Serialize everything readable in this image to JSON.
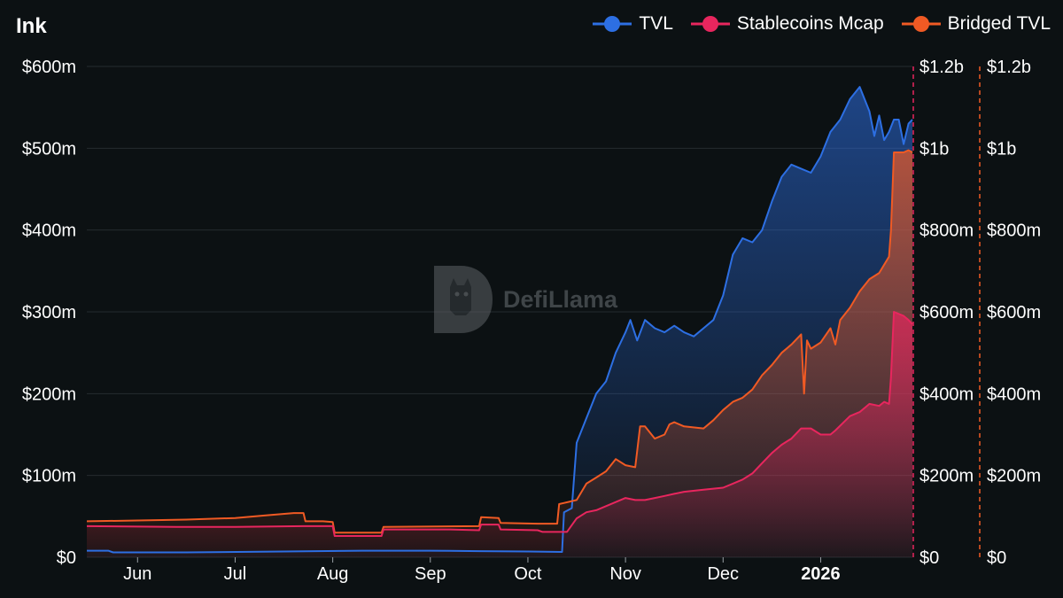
{
  "chart_data": {
    "type": "area",
    "title": "Ink",
    "legend": [
      "TVL",
      "Stablecoins Mcap",
      "Bridged TVL"
    ],
    "legend_position": "top-right",
    "x_tick_labels": [
      "Jun",
      "Jul",
      "Aug",
      "Sep",
      "Oct",
      "Nov",
      "Dec",
      "2026"
    ],
    "x_tick_months": [
      1,
      2,
      3,
      4,
      5,
      6,
      7,
      8
    ],
    "x_range_months": [
      0.48,
      8.94
    ],
    "left_axis": {
      "ticks": [
        "$0",
        "$100m",
        "$200m",
        "$300m",
        "$400m",
        "$500m",
        "$600m"
      ],
      "range": [
        0,
        600
      ]
    },
    "right_axis_1": {
      "ticks": [
        "$0",
        "$200m",
        "$400m",
        "$600m",
        "$800m",
        "$1b",
        "$1.2b"
      ],
      "range": [
        0,
        1200
      ]
    },
    "right_axis_2": {
      "ticks": [
        "$0",
        "$200m",
        "$400m",
        "$600m",
        "$800m",
        "$1b",
        "$1.2b"
      ],
      "range": [
        0,
        1200
      ]
    },
    "x_unit": "months since 2025-05-01 (1 = Jun 1)",
    "series": [
      {
        "name": "TVL",
        "axis": "left",
        "color": "#2d6fe3",
        "points": [
          [
            0.48,
            8
          ],
          [
            0.7,
            8
          ],
          [
            0.75,
            6
          ],
          [
            1.5,
            6
          ],
          [
            2.5,
            7
          ],
          [
            3.3,
            8
          ],
          [
            4.0,
            8
          ],
          [
            4.5,
            7.5
          ],
          [
            5.0,
            7
          ],
          [
            5.35,
            6.5
          ],
          [
            5.37,
            55
          ],
          [
            5.45,
            60
          ],
          [
            5.5,
            140
          ],
          [
            5.6,
            170
          ],
          [
            5.7,
            200
          ],
          [
            5.8,
            215
          ],
          [
            5.9,
            250
          ],
          [
            6.0,
            275
          ],
          [
            6.05,
            290
          ],
          [
            6.12,
            265
          ],
          [
            6.2,
            290
          ],
          [
            6.3,
            280
          ],
          [
            6.4,
            275
          ],
          [
            6.5,
            283
          ],
          [
            6.6,
            275
          ],
          [
            6.7,
            270
          ],
          [
            6.8,
            280
          ],
          [
            6.9,
            290
          ],
          [
            7.0,
            320
          ],
          [
            7.1,
            370
          ],
          [
            7.2,
            390
          ],
          [
            7.3,
            385
          ],
          [
            7.4,
            400
          ],
          [
            7.5,
            435
          ],
          [
            7.6,
            465
          ],
          [
            7.7,
            480
          ],
          [
            7.8,
            475
          ],
          [
            7.9,
            470
          ],
          [
            8.0,
            490
          ],
          [
            8.1,
            520
          ],
          [
            8.2,
            535
          ],
          [
            8.3,
            560
          ],
          [
            8.4,
            575
          ],
          [
            8.5,
            545
          ],
          [
            8.55,
            515
          ],
          [
            8.6,
            540
          ],
          [
            8.65,
            510
          ],
          [
            8.7,
            520
          ],
          [
            8.75,
            535
          ],
          [
            8.8,
            535
          ],
          [
            8.85,
            505
          ],
          [
            8.9,
            530
          ],
          [
            8.94,
            535
          ]
        ]
      },
      {
        "name": "Stablecoins Mcap",
        "axis": "right",
        "color": "#e8265e",
        "points": [
          [
            0.48,
            76
          ],
          [
            1.4,
            74
          ],
          [
            2.0,
            74
          ],
          [
            2.7,
            76
          ],
          [
            2.8,
            76
          ],
          [
            3.0,
            76
          ],
          [
            3.02,
            52
          ],
          [
            3.5,
            52
          ],
          [
            3.52,
            68
          ],
          [
            4.2,
            68
          ],
          [
            4.5,
            66
          ],
          [
            4.52,
            80
          ],
          [
            4.7,
            80
          ],
          [
            4.72,
            68
          ],
          [
            5.1,
            66
          ],
          [
            5.15,
            62
          ],
          [
            5.4,
            62
          ],
          [
            5.5,
            95
          ],
          [
            5.6,
            110
          ],
          [
            5.7,
            115
          ],
          [
            5.8,
            125
          ],
          [
            5.9,
            135
          ],
          [
            6.0,
            145
          ],
          [
            6.1,
            140
          ],
          [
            6.2,
            140
          ],
          [
            6.3,
            145
          ],
          [
            6.4,
            150
          ],
          [
            6.5,
            155
          ],
          [
            6.6,
            160
          ],
          [
            6.8,
            165
          ],
          [
            7.0,
            170
          ],
          [
            7.1,
            180
          ],
          [
            7.2,
            190
          ],
          [
            7.3,
            205
          ],
          [
            7.4,
            230
          ],
          [
            7.5,
            255
          ],
          [
            7.6,
            275
          ],
          [
            7.7,
            290
          ],
          [
            7.8,
            315
          ],
          [
            7.9,
            315
          ],
          [
            8.0,
            300
          ],
          [
            8.1,
            300
          ],
          [
            8.15,
            310
          ],
          [
            8.3,
            345
          ],
          [
            8.4,
            355
          ],
          [
            8.5,
            375
          ],
          [
            8.6,
            370
          ],
          [
            8.65,
            380
          ],
          [
            8.7,
            375
          ],
          [
            8.72,
            440
          ],
          [
            8.75,
            600
          ],
          [
            8.8,
            595
          ],
          [
            8.85,
            590
          ],
          [
            8.9,
            580
          ],
          [
            8.94,
            570
          ]
        ]
      },
      {
        "name": "Bridged TVL",
        "axis": "right2",
        "color": "#f05a24",
        "points": [
          [
            0.48,
            88
          ],
          [
            1.0,
            90
          ],
          [
            1.5,
            92
          ],
          [
            2.0,
            96
          ],
          [
            2.3,
            102
          ],
          [
            2.6,
            108
          ],
          [
            2.7,
            108
          ],
          [
            2.72,
            88
          ],
          [
            2.9,
            88
          ],
          [
            3.0,
            86
          ],
          [
            3.02,
            60
          ],
          [
            3.5,
            60
          ],
          [
            3.52,
            74
          ],
          [
            4.5,
            76
          ],
          [
            4.52,
            98
          ],
          [
            4.7,
            96
          ],
          [
            4.72,
            84
          ],
          [
            5.1,
            82
          ],
          [
            5.2,
            82
          ],
          [
            5.3,
            82
          ],
          [
            5.32,
            130
          ],
          [
            5.5,
            140
          ],
          [
            5.6,
            180
          ],
          [
            5.7,
            195
          ],
          [
            5.8,
            210
          ],
          [
            5.9,
            240
          ],
          [
            6.0,
            225
          ],
          [
            6.1,
            220
          ],
          [
            6.15,
            320
          ],
          [
            6.2,
            320
          ],
          [
            6.3,
            290
          ],
          [
            6.4,
            300
          ],
          [
            6.45,
            325
          ],
          [
            6.5,
            330
          ],
          [
            6.6,
            320
          ],
          [
            6.8,
            315
          ],
          [
            6.9,
            335
          ],
          [
            7.0,
            360
          ],
          [
            7.1,
            380
          ],
          [
            7.2,
            390
          ],
          [
            7.3,
            410
          ],
          [
            7.4,
            445
          ],
          [
            7.5,
            470
          ],
          [
            7.6,
            500
          ],
          [
            7.7,
            520
          ],
          [
            7.8,
            545
          ],
          [
            7.83,
            400
          ],
          [
            7.86,
            530
          ],
          [
            7.9,
            510
          ],
          [
            8.0,
            525
          ],
          [
            8.1,
            560
          ],
          [
            8.15,
            520
          ],
          [
            8.2,
            580
          ],
          [
            8.3,
            610
          ],
          [
            8.4,
            650
          ],
          [
            8.5,
            680
          ],
          [
            8.6,
            695
          ],
          [
            8.7,
            735
          ],
          [
            8.72,
            800
          ],
          [
            8.75,
            990
          ],
          [
            8.8,
            990
          ],
          [
            8.85,
            990
          ],
          [
            8.9,
            995
          ],
          [
            8.94,
            990
          ]
        ]
      }
    ]
  },
  "watermark": "DefiLlama"
}
